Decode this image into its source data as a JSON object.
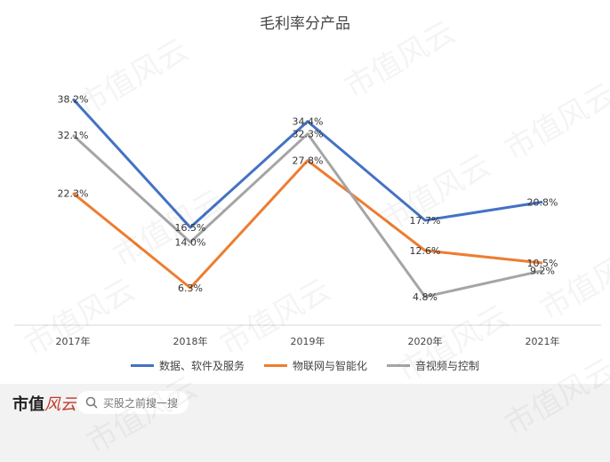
{
  "chart_data": {
    "type": "line",
    "title": "毛利率分产品",
    "categories": [
      "2017年",
      "2018年",
      "2019年",
      "2020年",
      "2021年"
    ],
    "ylim": [
      0,
      42
    ],
    "series": [
      {
        "name": "数据、软件及服务",
        "color": "#4472c4",
        "values": [
          38.2,
          16.5,
          34.4,
          17.7,
          20.8
        ],
        "labels": [
          "38.2%",
          "16.5%",
          "34.4%",
          "17.7%",
          "20.8%"
        ]
      },
      {
        "name": "物联网与智能化",
        "color": "#ed7d31",
        "values": [
          22.3,
          6.3,
          27.8,
          12.6,
          10.5
        ],
        "labels": [
          "22.3%",
          "6.3%",
          "27.8%",
          "12.6%",
          "10.5%"
        ]
      },
      {
        "name": "音视频与控制",
        "color": "#a5a5a5",
        "values": [
          32.1,
          14.0,
          32.3,
          4.8,
          9.2
        ],
        "labels": [
          "32.1%",
          "14.0%",
          "32.3%",
          "4.8%",
          "9.2%"
        ]
      }
    ],
    "grid": false,
    "legend_position": "bottom"
  },
  "footer": {
    "brand_main": "市值",
    "brand_script": "风云",
    "search_placeholder": "买股之前搜一搜",
    "search_icon": "search-icon"
  },
  "watermark_text": "市值风云"
}
